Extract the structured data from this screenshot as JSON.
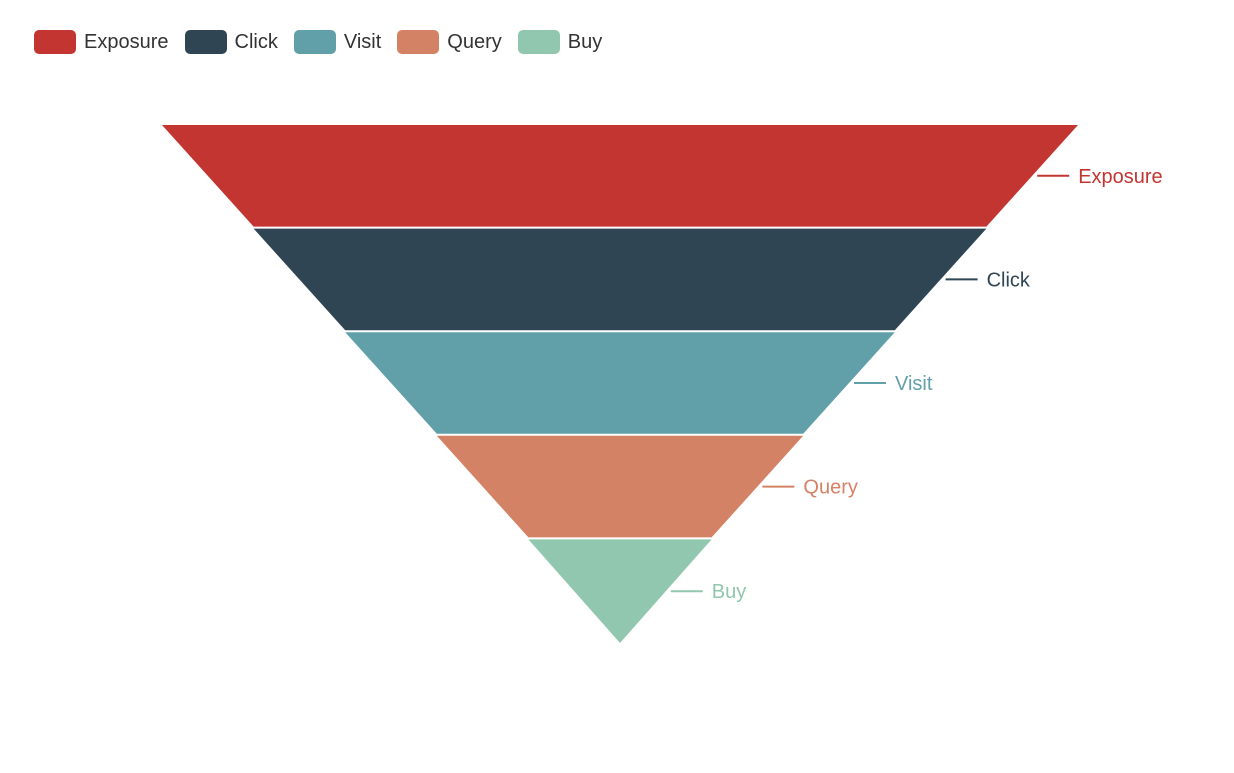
{
  "chart_data": {
    "type": "funnel",
    "title": "",
    "legend_position": "top-left",
    "categories": [
      "Exposure",
      "Click",
      "Visit",
      "Query",
      "Buy"
    ],
    "values": [
      100,
      80,
      60,
      40,
      20
    ],
    "colors": [
      "#c23531",
      "#2f4554",
      "#61a0a8",
      "#d48265",
      "#91c7ae"
    ]
  }
}
